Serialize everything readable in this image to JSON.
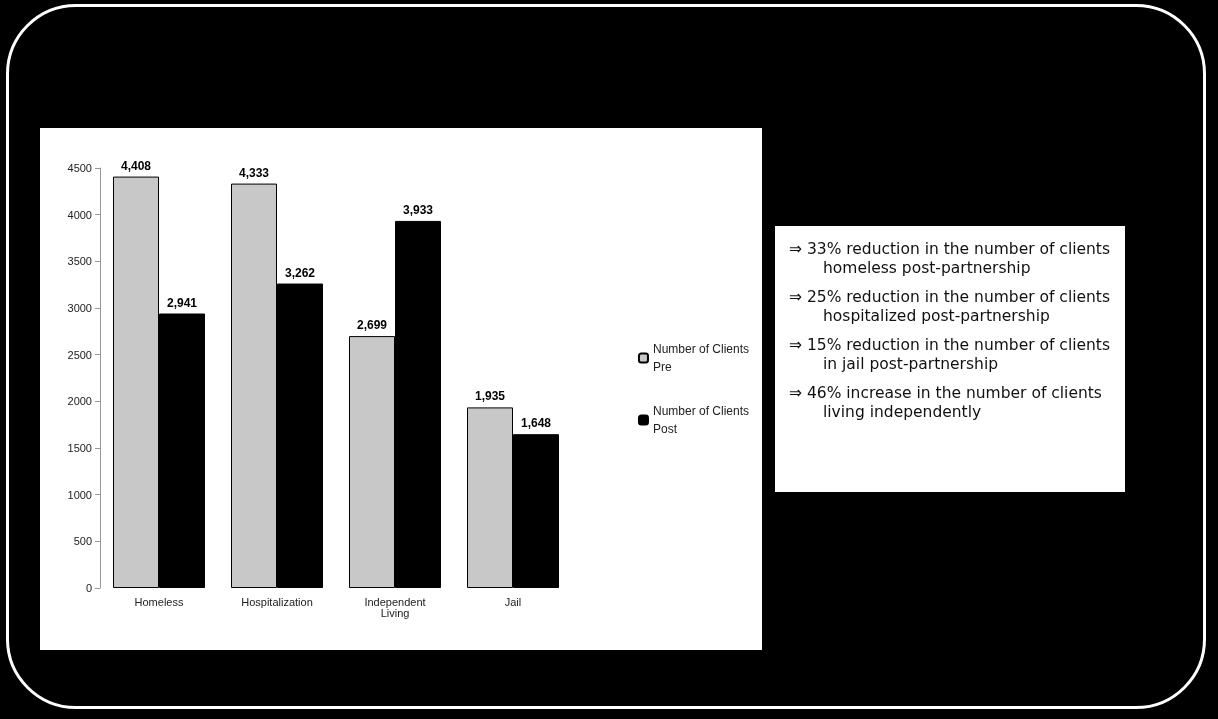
{
  "chart_data": {
    "type": "bar",
    "categories": [
      "Homeless",
      "Hospitalization",
      "Independent\nLiving",
      "Jail"
    ],
    "series": [
      {
        "name": "Number of Clients\nPre",
        "color": "#c8c8c8",
        "values": [
          4408,
          4333,
          2699,
          1935
        ],
        "value_labels": [
          "4,408",
          "4,333",
          "2,699",
          "1,935"
        ]
      },
      {
        "name": "Number of Clients\nPost",
        "color": "#000000",
        "values": [
          2941,
          3262,
          3933,
          1648
        ],
        "value_labels": [
          "2,941",
          "3,262",
          "3,933",
          "1,648"
        ]
      }
    ],
    "ylim": [
      0,
      4500
    ],
    "yticks": [
      0,
      500,
      1000,
      1500,
      2000,
      2500,
      3000,
      3500,
      4000,
      4500
    ],
    "grid": false,
    "legend": "right",
    "annotations": [
      "⇒  33% reduction in the number of clients homeless post-partnership",
      "⇒  25% reduction in the number of clients hospitalized post-partnership",
      "⇒  15% reduction in the number of clients in jail post-partnership",
      "⇒  46% increase in the number of clients living independently"
    ]
  }
}
